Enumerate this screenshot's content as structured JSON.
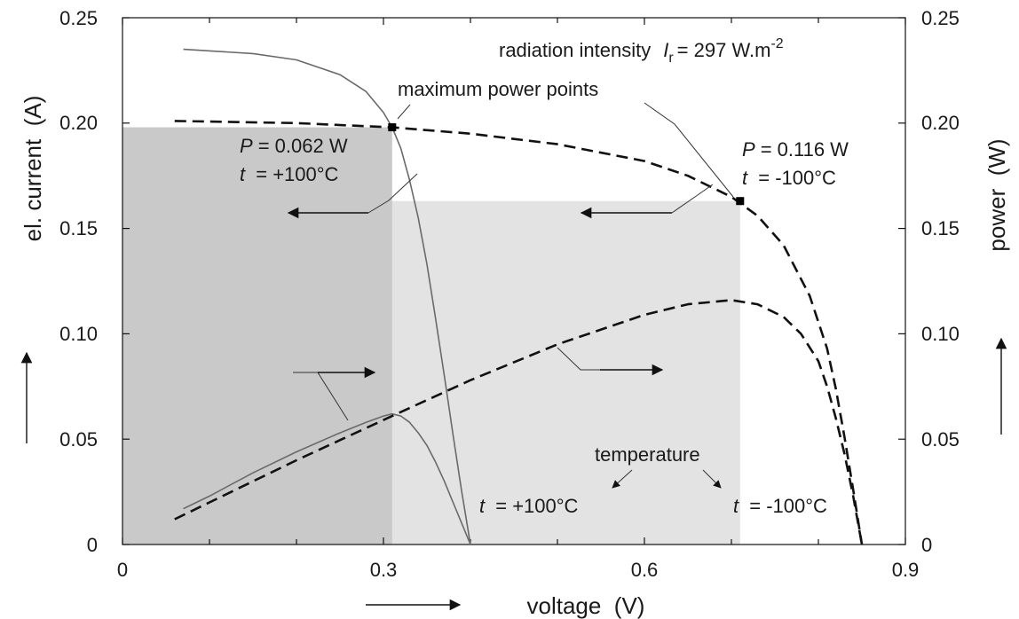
{
  "chart_data": {
    "type": "line",
    "xlabel": "voltage  (V)",
    "ylabel_left": "el. current  (A)",
    "ylabel_right": "power  (W)",
    "xlim": [
      0,
      0.9
    ],
    "ylim": [
      0,
      0.25
    ],
    "ylim_right": [
      0,
      0.25
    ],
    "x_ticks": [
      "0",
      "0.3",
      "0.6",
      "0.9"
    ],
    "x_tick_values": [
      0,
      0.3,
      0.6,
      0.9
    ],
    "y_ticks": [
      "0",
      "0.05",
      "0.10",
      "0.15",
      "0.20",
      "0.25"
    ],
    "y_tick_values": [
      0,
      0.05,
      0.1,
      0.15,
      0.2,
      0.25
    ],
    "grid": false,
    "series": [
      {
        "name": "t = +100°C",
        "quantity": "current",
        "style": "solid",
        "color": "#6a6a6a",
        "x": [
          0.07,
          0.15,
          0.2,
          0.25,
          0.28,
          0.3,
          0.31,
          0.32,
          0.33,
          0.34,
          0.35,
          0.36,
          0.37,
          0.38,
          0.39,
          0.4
        ],
        "y": [
          0.235,
          0.233,
          0.23,
          0.223,
          0.215,
          0.205,
          0.198,
          0.188,
          0.173,
          0.155,
          0.133,
          0.107,
          0.08,
          0.052,
          0.025,
          0.0
        ]
      },
      {
        "name": "t = +100°C",
        "quantity": "power",
        "style": "solid",
        "color": "#6a6a6a",
        "x": [
          0.07,
          0.1,
          0.15,
          0.2,
          0.25,
          0.28,
          0.3,
          0.31,
          0.32,
          0.33,
          0.34,
          0.35,
          0.36,
          0.37,
          0.38,
          0.39,
          0.4
        ],
        "y": [
          0.017,
          0.023,
          0.034,
          0.044,
          0.053,
          0.058,
          0.061,
          0.062,
          0.061,
          0.058,
          0.053,
          0.047,
          0.039,
          0.03,
          0.02,
          0.01,
          0.0
        ]
      },
      {
        "name": "t = -100°C",
        "quantity": "current",
        "style": "dashed",
        "color": "#111111",
        "x": [
          0.06,
          0.2,
          0.31,
          0.4,
          0.5,
          0.6,
          0.65,
          0.7,
          0.73,
          0.76,
          0.79,
          0.81,
          0.82,
          0.83,
          0.84,
          0.85
        ],
        "y": [
          0.201,
          0.2,
          0.198,
          0.195,
          0.19,
          0.182,
          0.175,
          0.165,
          0.156,
          0.142,
          0.118,
          0.093,
          0.074,
          0.051,
          0.026,
          0.0
        ]
      },
      {
        "name": "t = -100°C",
        "quantity": "power",
        "style": "dashed",
        "color": "#111111",
        "x": [
          0.06,
          0.1,
          0.2,
          0.31,
          0.4,
          0.5,
          0.6,
          0.65,
          0.7,
          0.73,
          0.76,
          0.78,
          0.8,
          0.81,
          0.82,
          0.83,
          0.84,
          0.85
        ],
        "y": [
          0.012,
          0.02,
          0.04,
          0.061,
          0.078,
          0.095,
          0.109,
          0.114,
          0.116,
          0.114,
          0.108,
          0.1,
          0.087,
          0.075,
          0.06,
          0.043,
          0.023,
          0.0
        ]
      }
    ],
    "max_power_points": [
      {
        "x": 0.31,
        "y": 0.198
      },
      {
        "x": 0.71,
        "y": 0.163
      }
    ],
    "shaded_rectangles": [
      {
        "x_max": 0.71,
        "y_max": 0.163,
        "color": "#e3e3e3"
      },
      {
        "x_max": 0.31,
        "y_max": 0.198,
        "color": "#c9c9c9"
      }
    ],
    "annotations": {
      "radiation_prefix": "radiation intensity",
      "radiation_symbol": "I",
      "radiation_sub": "r",
      "radiation_value": "= 297 W.m",
      "radiation_exp": "-2",
      "mpp_label": "maximum power points",
      "p_left_symbol": "P",
      "p_left_value": "= 0.062 W",
      "t_left_symbol": "t",
      "t_left_value": " = +100°C",
      "p_right_symbol": "P",
      "p_right_value": "= 0.116 W",
      "t_right_symbol": "t",
      "t_right_value": " = -100°C",
      "temperature_label": "temperature",
      "t_bottom_left_symbol": "t",
      "t_bottom_left_value": " = +100°C",
      "t_bottom_right_symbol": "t",
      "t_bottom_right_value": " = -100°C"
    }
  }
}
